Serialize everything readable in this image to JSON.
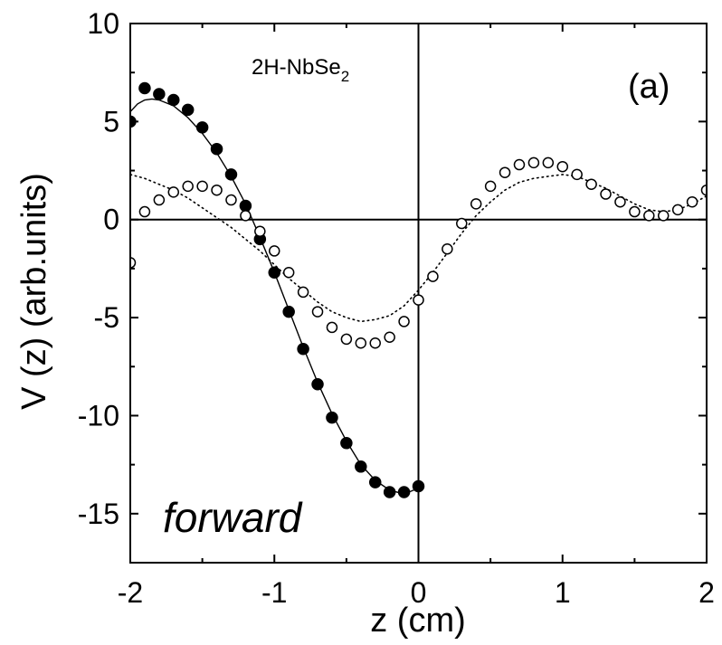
{
  "chart_data": {
    "type": "scatter",
    "xlabel": "z (cm)",
    "ylabel": "V (z) (arb.units)",
    "xlim": [
      -2,
      2
    ],
    "ylim": [
      -17.5,
      10
    ],
    "x_ticks": [
      "-2",
      "-1",
      "0",
      "1",
      "2"
    ],
    "x_tick_values": [
      -2,
      -1,
      0,
      1,
      2
    ],
    "y_ticks": [
      "10",
      "5",
      "0",
      "-5",
      "-10",
      "-15"
    ],
    "y_tick_values": [
      10,
      5,
      0,
      -5,
      -10,
      -15
    ],
    "reference_lines": {
      "x": 0,
      "y": 0
    },
    "annotations": {
      "material_main": "2H-NbSe",
      "material_sub": "2",
      "panel": "(a)",
      "mode": "forward"
    },
    "series": [
      {
        "marker": "filled-circle",
        "color": "#000000",
        "x": [
          -2.0,
          -1.9,
          -1.8,
          -1.7,
          -1.6,
          -1.5,
          -1.4,
          -1.3,
          -1.2,
          -1.1,
          -1.0,
          -0.9,
          -0.8,
          -0.7,
          -0.6,
          -0.5,
          -0.4,
          -0.3,
          -0.2,
          -0.1,
          0.0
        ],
        "y": [
          5.0,
          6.7,
          6.4,
          6.1,
          5.6,
          4.7,
          3.6,
          2.3,
          0.7,
          -1.0,
          -2.7,
          -4.7,
          -6.6,
          -8.4,
          -10.1,
          -11.4,
          -12.6,
          -13.4,
          -13.9,
          -13.9,
          -13.6
        ]
      },
      {
        "marker": "open-circle",
        "color": "#000000",
        "x": [
          -2.0,
          -1.9,
          -1.8,
          -1.7,
          -1.6,
          -1.5,
          -1.4,
          -1.3,
          -1.2,
          -1.1,
          -1.0,
          -0.9,
          -0.8,
          -0.7,
          -0.6,
          -0.5,
          -0.4,
          -0.3,
          -0.2,
          -0.1,
          0.0,
          0.1,
          0.2,
          0.3,
          0.4,
          0.5,
          0.6,
          0.7,
          0.8,
          0.9,
          1.0,
          1.1,
          1.2,
          1.3,
          1.4,
          1.5,
          1.6,
          1.7,
          1.8,
          1.9,
          2.0
        ],
        "y": [
          -2.2,
          0.4,
          1.0,
          1.4,
          1.7,
          1.7,
          1.5,
          1.0,
          0.2,
          -0.6,
          -1.6,
          -2.7,
          -3.7,
          -4.7,
          -5.5,
          -6.1,
          -6.3,
          -6.3,
          -6.0,
          -5.2,
          -4.1,
          -2.9,
          -1.5,
          -0.2,
          0.8,
          1.7,
          2.4,
          2.8,
          2.9,
          2.9,
          2.7,
          2.3,
          1.8,
          1.3,
          0.9,
          0.4,
          0.2,
          0.2,
          0.5,
          0.9,
          1.5
        ]
      },
      {
        "style": "solid-line",
        "color": "#000000",
        "x": [
          -2.0,
          -1.95,
          -1.9,
          -1.85,
          -1.8,
          -1.7,
          -1.6,
          -1.5,
          -1.4,
          -1.3,
          -1.2,
          -1.1,
          -1.0,
          -0.9,
          -0.8,
          -0.7,
          -0.6,
          -0.5,
          -0.4,
          -0.3,
          -0.2,
          -0.1,
          0.0
        ],
        "y": [
          5.5,
          5.9,
          6.1,
          6.15,
          6.1,
          5.8,
          5.2,
          4.4,
          3.4,
          2.2,
          0.8,
          -0.9,
          -2.7,
          -4.6,
          -6.5,
          -8.3,
          -9.9,
          -11.3,
          -12.5,
          -13.3,
          -13.8,
          -14.0,
          -13.7
        ]
      },
      {
        "style": "dotted-line",
        "color": "#000000",
        "x": [
          -2.0,
          -1.9,
          -1.8,
          -1.7,
          -1.6,
          -1.5,
          -1.4,
          -1.3,
          -1.2,
          -1.1,
          -1.0,
          -0.9,
          -0.8,
          -0.7,
          -0.6,
          -0.5,
          -0.4,
          -0.3,
          -0.2,
          -0.1,
          0.0,
          0.1,
          0.2,
          0.3,
          0.4,
          0.5,
          0.6,
          0.7,
          0.8,
          0.9,
          1.0,
          1.1,
          1.2,
          1.3,
          1.4,
          1.5,
          1.6,
          1.7,
          1.8,
          1.9,
          2.0
        ],
        "y": [
          2.3,
          2.1,
          1.8,
          1.5,
          1.1,
          0.6,
          0.1,
          -0.4,
          -1.0,
          -1.6,
          -2.3,
          -3.0,
          -3.6,
          -4.2,
          -4.7,
          -5.0,
          -5.2,
          -5.1,
          -4.9,
          -4.4,
          -3.6,
          -2.7,
          -1.7,
          -0.7,
          0.2,
          0.9,
          1.5,
          1.9,
          2.1,
          2.2,
          2.3,
          2.2,
          1.9,
          1.6,
          1.2,
          0.8,
          0.5,
          0.4,
          0.5,
          0.8,
          1.2
        ]
      }
    ]
  }
}
